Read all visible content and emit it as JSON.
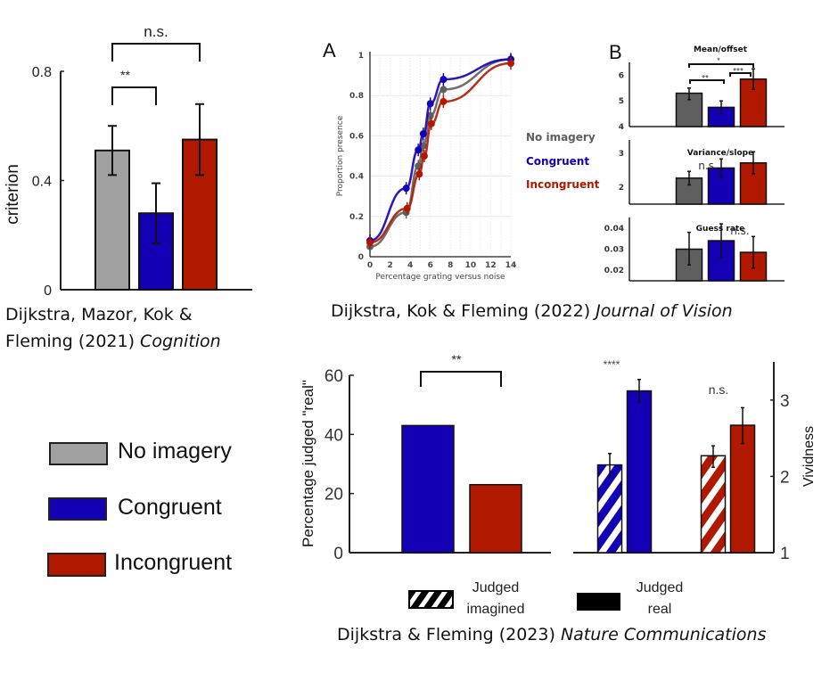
{
  "colors": {
    "no_imagery": "#a0a0a0",
    "no_imagery_dark": "#5f5f5f",
    "congruent": "#1400b4",
    "incongruent": "#b01800",
    "axis": "#222222"
  },
  "legend": {
    "items": [
      {
        "label": "No imagery",
        "color": "#a0a0a0"
      },
      {
        "label": "Congruent",
        "color": "#1400b4"
      },
      {
        "label": "Incongruent",
        "color": "#b01800"
      }
    ]
  },
  "captions": {
    "cognition_line1": "Dijkstra, Mazor, Kok &",
    "cognition_line2_plain": "Fleming (2021) ",
    "cognition_line2_italic": "Cognition",
    "jov_plain": "Dijkstra, Kok & Fleming (2022) ",
    "jov_italic": "Journal of Vision",
    "natcomm_plain": "Dijkstra & Fleming (2023) ",
    "natcomm_italic": "Nature Communications"
  },
  "chart_data": [
    {
      "id": "criterion",
      "type": "bar",
      "ylabel": "criterion",
      "ylim": [
        0,
        0.8
      ],
      "yticks": [
        "0",
        "0.4",
        "0.8"
      ],
      "ytick_values": [
        0,
        0.4,
        0.8
      ],
      "categories": [
        "No imagery",
        "Congruent",
        "Incongruent"
      ],
      "values": [
        0.51,
        0.28,
        0.55
      ],
      "errors": [
        [
          0.42,
          0.6
        ],
        [
          0.17,
          0.39
        ],
        [
          0.42,
          0.68
        ]
      ],
      "annotations": [
        {
          "text": "**",
          "from": 0,
          "to": 1
        },
        {
          "text": "n.s.",
          "from": 0,
          "to": 2
        }
      ]
    },
    {
      "id": "psychometric",
      "type": "line",
      "panel_label": "A",
      "xlabel": "Percentage grating versus noise",
      "ylabel": "Proportion presence",
      "xlim": [
        0,
        14
      ],
      "ylim": [
        0,
        1
      ],
      "xticks": [
        "0",
        "2",
        "4",
        "6",
        "8",
        "10",
        "12",
        "14"
      ],
      "xtick_values": [
        0,
        2,
        4,
        6,
        8,
        10,
        12,
        14
      ],
      "yticks": [
        "0",
        "0.2",
        "0.4",
        "0.6",
        "0.8",
        "1"
      ],
      "ytick_values": [
        0,
        0.2,
        0.4,
        0.6,
        0.8,
        1
      ],
      "grid": true,
      "legend_position": "right",
      "series": [
        {
          "name": "No imagery",
          "color": "#5f5f5f",
          "x": [
            0,
            3.6,
            4.8,
            5.3,
            6.0,
            7.3,
            14
          ],
          "y": [
            0.05,
            0.22,
            0.45,
            0.55,
            0.7,
            0.83,
            0.98
          ]
        },
        {
          "name": "Congruent",
          "color": "#1400b4",
          "x": [
            0,
            3.6,
            4.8,
            5.3,
            6.0,
            7.3,
            14
          ],
          "y": [
            0.08,
            0.34,
            0.53,
            0.61,
            0.76,
            0.88,
            0.98
          ]
        },
        {
          "name": "Incongruent",
          "color": "#b01800",
          "x": [
            0,
            3.7,
            4.9,
            5.4,
            6.1,
            7.3,
            14
          ],
          "y": [
            0.07,
            0.24,
            0.41,
            0.5,
            0.66,
            0.77,
            0.96
          ]
        }
      ]
    },
    {
      "id": "mean-offset",
      "type": "bar",
      "panel_label": "B",
      "title": "Mean/offset",
      "ylim": [
        4,
        6.5
      ],
      "yticks": [
        "4",
        "5",
        "6"
      ],
      "ytick_values": [
        4,
        5,
        6
      ],
      "categories": [
        "No imagery",
        "Congruent",
        "Incongruent"
      ],
      "values": [
        5.3,
        4.75,
        5.85
      ],
      "errors": [
        [
          5.05,
          5.5
        ],
        [
          4.5,
          5.0
        ],
        [
          5.45,
          6.25
        ]
      ],
      "annotations": [
        {
          "text": "**",
          "from": 0,
          "to": 1
        },
        {
          "text": "***",
          "from": 1,
          "to": 2
        },
        {
          "text": "*",
          "from": 0,
          "to": 2
        }
      ]
    },
    {
      "id": "variance-slope",
      "type": "bar",
      "title": "Variance/slope",
      "ylim": [
        1.5,
        3.4
      ],
      "yticks": [
        "2",
        "3"
      ],
      "ytick_values": [
        2,
        3
      ],
      "categories": [
        "No imagery",
        "Congruent",
        "Incongruent"
      ],
      "values": [
        2.27,
        2.57,
        2.72
      ],
      "errors": [
        [
          2.07,
          2.47
        ],
        [
          2.28,
          2.84
        ],
        [
          2.4,
          3.05
        ]
      ],
      "annotations": [
        {
          "text": "n.s."
        }
      ]
    },
    {
      "id": "guess-rate",
      "type": "bar",
      "title": "Guess rate",
      "ylim": [
        0.015,
        0.045
      ],
      "yticks": [
        "0.02",
        "0.03",
        "0.04"
      ],
      "ytick_values": [
        0.02,
        0.03,
        0.04
      ],
      "categories": [
        "No imagery",
        "Congruent",
        "Incongruent"
      ],
      "values": [
        0.03,
        0.034,
        0.0285
      ],
      "errors": [
        [
          0.0225,
          0.038
        ],
        [
          0.026,
          0.042
        ],
        [
          0.021,
          0.036
        ]
      ],
      "annotations": [
        {
          "text": "n.s."
        }
      ]
    },
    {
      "id": "judged-real",
      "type": "bar",
      "ylabel": "Percentage judged \"real\"",
      "ylim": [
        0,
        60
      ],
      "yticks": [
        "0",
        "20",
        "40",
        "60"
      ],
      "ytick_values": [
        0,
        20,
        40,
        60
      ],
      "categories": [
        "Congruent",
        "Incongruent"
      ],
      "values": [
        43,
        23
      ],
      "annotations": [
        {
          "text": "**",
          "from": 0,
          "to": 1
        }
      ]
    },
    {
      "id": "vividness",
      "type": "bar",
      "ylabel": "Vividness",
      "ylim": [
        1,
        3.5
      ],
      "yticks": [
        "1",
        "2",
        "3"
      ],
      "ytick_values": [
        1,
        2,
        3
      ],
      "categories": [
        "Congruent",
        "Incongruent"
      ],
      "series": [
        {
          "name": "Judged imagined",
          "pattern": "hatched",
          "values": [
            2.15,
            2.27
          ],
          "errors": [
            [
              2.0,
              2.3
            ],
            [
              2.12,
              2.4
            ]
          ]
        },
        {
          "name": "Judged real",
          "pattern": "solid",
          "values": [
            3.12,
            2.67
          ],
          "errors": [
            [
              2.97,
              3.27
            ],
            [
              2.43,
              2.9
            ]
          ]
        }
      ],
      "annotations": [
        {
          "text": "****",
          "group": 0
        },
        {
          "text": "n.s.",
          "group": 1
        }
      ],
      "legend": [
        {
          "label_line1": "Judged",
          "label_line2": "imagined",
          "pattern": "hatched"
        },
        {
          "label_line1": "Judged",
          "label_line2": "real",
          "pattern": "solid"
        }
      ]
    }
  ]
}
